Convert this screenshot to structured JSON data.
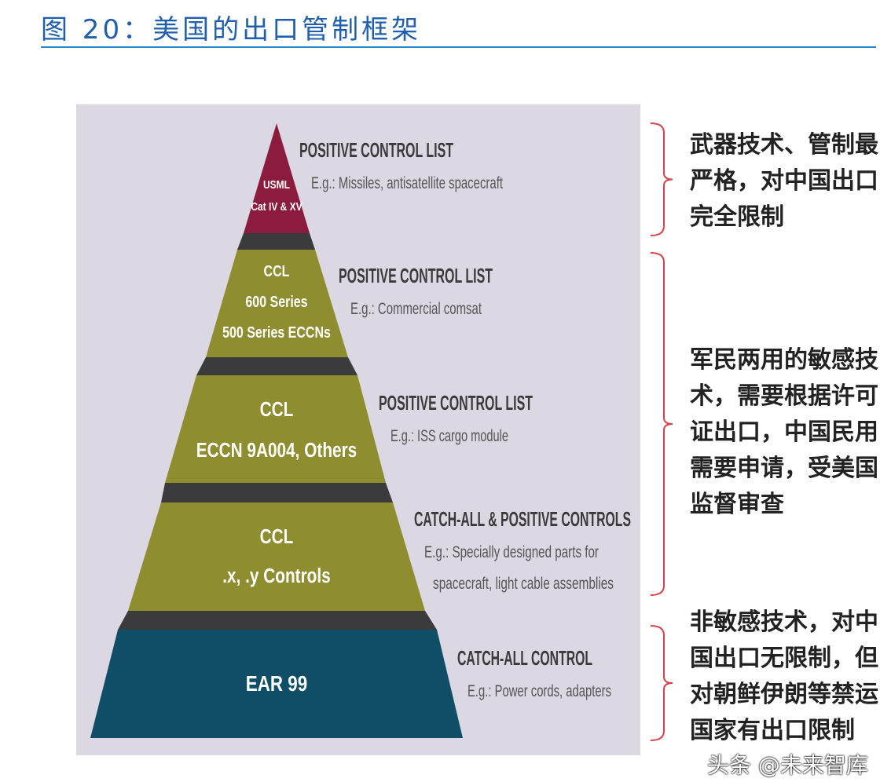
{
  "title": "图 20：美国的出口管制框架",
  "tiers": [
    {
      "label": [
        "USML",
        "Cat IV & XV"
      ],
      "heading": "POSITIVE CONTROL LIST",
      "example": [
        "E.g.: Missiles, antisatellite spacecraft"
      ],
      "color": "#8b1c3e"
    },
    {
      "label": [
        "CCL",
        "600 Series",
        "500 Series ECCNs"
      ],
      "heading": "POSITIVE CONTROL LIST",
      "example": [
        "E.g.: Commercial comsat"
      ],
      "color": "#8e8d2f"
    },
    {
      "label": [
        "CCL",
        "ECCN 9A004, Others"
      ],
      "heading": "POSITIVE CONTROL LIST",
      "example": [
        "E.g.: ISS cargo module"
      ],
      "color": "#8e8d2f"
    },
    {
      "label": [
        "CCL",
        ".x, .y Controls"
      ],
      "heading": "CATCH-ALL & POSITIVE CONTROLS",
      "example": [
        "E.g.: Specially designed parts for",
        "spacecraft, light cable assemblies"
      ],
      "color": "#8e8d2f"
    },
    {
      "label": [
        "EAR 99"
      ],
      "heading": "CATCH-ALL CONTROL",
      "example": [
        "E.g.: Power cords, adapters"
      ],
      "color": "#0f4e66"
    }
  ],
  "notes": [
    "武器技术、管制最严格，对中国出口完全限制",
    "军民两用的敏感技术，需要根据许可证出口，中国民用需要申请，受美国监督审查",
    "非敏感技术，对中国出口无限制，但对朝鲜伊朗等禁运国家有出口限制"
  ],
  "watermark": "头条 @未来智库",
  "colors": {
    "panel": "#dcd8e3",
    "band": "#3b3b3d",
    "bracket": "#d8424a",
    "title": "#1f5fae"
  }
}
